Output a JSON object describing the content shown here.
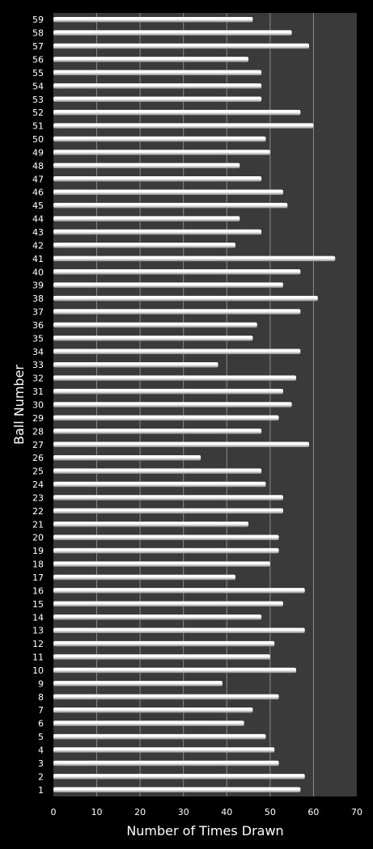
{
  "chart_data": {
    "type": "bar",
    "orientation": "horizontal",
    "categories": [
      "1",
      "2",
      "3",
      "4",
      "5",
      "6",
      "7",
      "8",
      "9",
      "10",
      "11",
      "12",
      "13",
      "14",
      "15",
      "16",
      "17",
      "18",
      "19",
      "20",
      "21",
      "22",
      "23",
      "24",
      "25",
      "26",
      "27",
      "28",
      "29",
      "30",
      "31",
      "32",
      "33",
      "34",
      "35",
      "36",
      "37",
      "38",
      "39",
      "40",
      "41",
      "42",
      "43",
      "44",
      "45",
      "46",
      "47",
      "48",
      "49",
      "50",
      "51",
      "52",
      "53",
      "54",
      "55",
      "56",
      "57",
      "58",
      "59"
    ],
    "values": [
      57,
      58,
      52,
      51,
      49,
      44,
      46,
      52,
      39,
      56,
      50,
      51,
      58,
      48,
      53,
      58,
      42,
      50,
      52,
      52,
      45,
      53,
      53,
      49,
      48,
      34,
      59,
      48,
      52,
      55,
      53,
      56,
      38,
      57,
      46,
      47,
      57,
      61,
      53,
      57,
      65,
      42,
      48,
      43,
      54,
      53,
      48,
      43,
      50,
      49,
      60,
      57,
      48,
      48,
      48,
      45,
      59,
      55,
      46
    ],
    "xlabel": "Number of Times Drawn",
    "ylabel": "Ball Number",
    "xlim": [
      0,
      70
    ],
    "xticks": [
      0,
      10,
      20,
      30,
      40,
      50,
      60,
      70
    ],
    "grid": true,
    "colors": {
      "background": "#000000",
      "plot_area": "#3a3a3a",
      "gridline": "#8a8a8a",
      "bar_light": "#ffffff",
      "bar_dark": "#8c8c8c",
      "text": "#ffffff"
    }
  }
}
